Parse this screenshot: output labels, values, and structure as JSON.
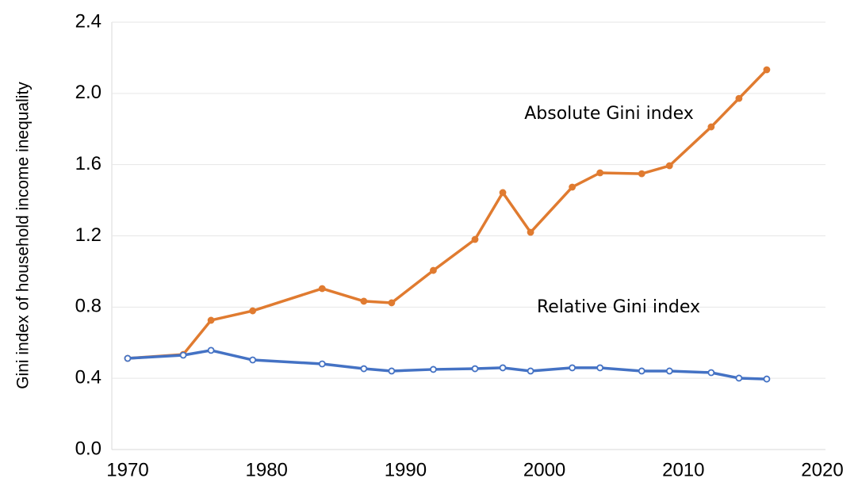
{
  "chart_data": {
    "type": "line",
    "y_label": "Gini index of household income inequality",
    "x": [
      1970,
      1974,
      1976,
      1979,
      1984,
      1987,
      1989,
      1992,
      1995,
      1997,
      1999,
      2002,
      2004,
      2007,
      2009,
      2012,
      2014,
      2016
    ],
    "series": [
      {
        "name": "Absolute Gini index",
        "color": "#e07b30",
        "marker": "filled",
        "values": [
          0.512,
          0.534,
          0.726,
          0.779,
          0.904,
          0.833,
          0.824,
          1.006,
          1.18,
          1.443,
          1.22,
          1.474,
          1.554,
          1.549,
          1.594,
          1.812,
          1.972,
          2.133
        ]
      },
      {
        "name": "Relative Gini index",
        "color": "#4472c4",
        "marker": "hollow",
        "values": [
          0.512,
          0.53,
          0.557,
          0.503,
          0.481,
          0.454,
          0.441,
          0.45,
          0.454,
          0.459,
          0.441,
          0.459,
          0.459,
          0.441,
          0.441,
          0.432,
          0.401,
          0.396
        ]
      }
    ],
    "xlim": [
      1970,
      2020
    ],
    "xticks": [
      1970,
      1980,
      1990,
      2000,
      2010,
      2020
    ],
    "ylim": [
      0,
      2.4
    ],
    "yticks": [
      {
        "value": 0,
        "label": "0.0"
      },
      0.4,
      0.8,
      1.2,
      1.6,
      {
        "value": 2,
        "label": "2.0"
      },
      2.4
    ],
    "grid": true
  }
}
